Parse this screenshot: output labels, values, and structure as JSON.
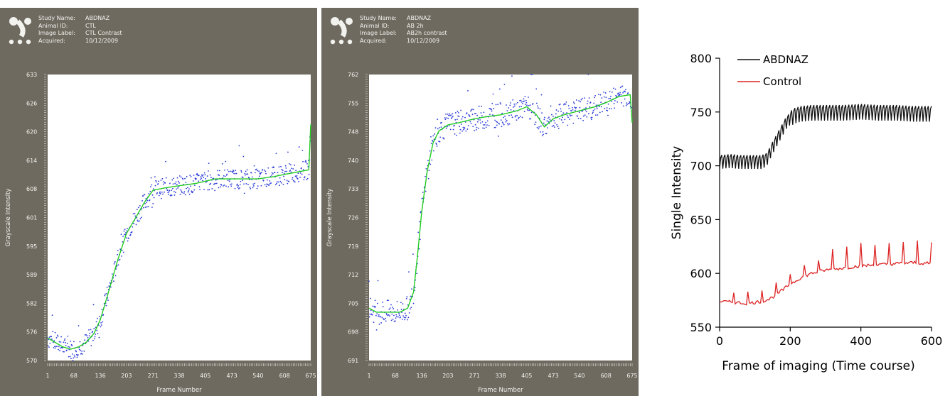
{
  "panels": [
    {
      "study_name_label": "Study Name:",
      "study_name": "ABDNAZ",
      "animal_id_label": "Animal ID:",
      "animal_id": "CTL",
      "image_label_label": "Image Label:",
      "image_label": "CTL Contrast",
      "acquired_label": "Acquired:",
      "acquired": "10/12/2009"
    },
    {
      "study_name_label": "Study Name:",
      "study_name": "ABDNAZ",
      "animal_id_label": "Animal ID:",
      "animal_id": "AB 2h",
      "image_label_label": "Image Label:",
      "image_label": "AB2h contrast",
      "acquired_label": "Acquired:",
      "acquired": "10/12/2009"
    }
  ],
  "colors": {
    "panel_bg": "#6e6a60",
    "fit_line": "#22cc22",
    "points": "#2a3ad8",
    "abdnaz": "#111111",
    "control": "#dd2222"
  },
  "chart_data": [
    {
      "type": "scatter",
      "title": "",
      "xlabel": "Frame Number",
      "ylabel": "Grayscale Intensity",
      "x_ticks": [
        "1",
        "68",
        "136",
        "203",
        "271",
        "338",
        "405",
        "473",
        "540",
        "608",
        "675"
      ],
      "y_ticks": [
        "570",
        "576",
        "582",
        "589",
        "595",
        "601",
        "608",
        "614",
        "620",
        "626",
        "633"
      ],
      "xlim": [
        1,
        675
      ],
      "ylim": [
        570,
        633
      ],
      "series": [
        {
          "kind": "fit-line",
          "x": [
            1,
            20,
            40,
            60,
            80,
            100,
            120,
            136,
            160,
            180,
            203,
            230,
            250,
            271,
            300,
            338,
            380,
            405,
            430,
            473,
            500,
            540,
            580,
            608,
            640,
            670,
            675
          ],
          "y": [
            575,
            574,
            573,
            572.5,
            573,
            574,
            576,
            579,
            586,
            592,
            598,
            602,
            605,
            607.5,
            608,
            608.5,
            609,
            609.5,
            610,
            610,
            610,
            610,
            610.5,
            611,
            611.5,
            612,
            622
          ]
        },
        {
          "kind": "scatter-points",
          "noise": 2.2
        }
      ]
    },
    {
      "type": "scatter",
      "title": "",
      "xlabel": "Frame Number",
      "ylabel": "Grayscale Intensity",
      "x_ticks": [
        "1",
        "68",
        "136",
        "203",
        "271",
        "338",
        "405",
        "473",
        "540",
        "608",
        "675"
      ],
      "y_ticks": [
        "691",
        "698",
        "705",
        "712",
        "719",
        "726",
        "733",
        "740",
        "748",
        "755",
        "762"
      ],
      "xlim": [
        1,
        675
      ],
      "ylim": [
        691,
        762
      ],
      "series": [
        {
          "kind": "fit-line",
          "x": [
            1,
            20,
            40,
            60,
            80,
            100,
            115,
            125,
            136,
            150,
            165,
            180,
            203,
            230,
            271,
            300,
            338,
            380,
            405,
            430,
            450,
            473,
            500,
            540,
            580,
            608,
            640,
            670,
            675
          ],
          "y": [
            704,
            703,
            703,
            703,
            703,
            704,
            708,
            717,
            728,
            738,
            745,
            748,
            749.5,
            750,
            751,
            751.5,
            752,
            753,
            754,
            752,
            749,
            751,
            752,
            753,
            754,
            755,
            756.5,
            757,
            750
          ]
        },
        {
          "kind": "scatter-points",
          "noise": 3.0
        }
      ]
    },
    {
      "type": "line",
      "title": "",
      "xlabel": "Frame of imaging (Time course)",
      "ylabel": "Single Intensity",
      "x_ticks": [
        0,
        200,
        400,
        600
      ],
      "y_ticks": [
        550,
        600,
        650,
        700,
        750,
        800
      ],
      "xlim": [
        0,
        600
      ],
      "ylim": [
        550,
        800
      ],
      "legend_position": "top-left",
      "series": [
        {
          "name": "ABDNAZ",
          "color": "#111111",
          "x": [
            0,
            30,
            60,
            90,
            120,
            135,
            150,
            170,
            190,
            210,
            230,
            260,
            300,
            350,
            400,
            450,
            500,
            550,
            600
          ],
          "y": [
            705,
            706,
            705,
            705,
            705,
            708,
            718,
            730,
            742,
            748,
            750,
            751,
            751,
            751,
            752,
            751,
            751,
            750,
            750
          ]
        },
        {
          "name": "Control",
          "color": "#dd2222",
          "x": [
            0,
            40,
            80,
            120,
            140,
            160,
            180,
            200,
            230,
            260,
            300,
            350,
            400,
            450,
            500,
            550,
            600
          ],
          "y": [
            574,
            573,
            572,
            574,
            576,
            580,
            585,
            590,
            596,
            600,
            603,
            605,
            607,
            608,
            609,
            610,
            609
          ]
        }
      ]
    }
  ]
}
